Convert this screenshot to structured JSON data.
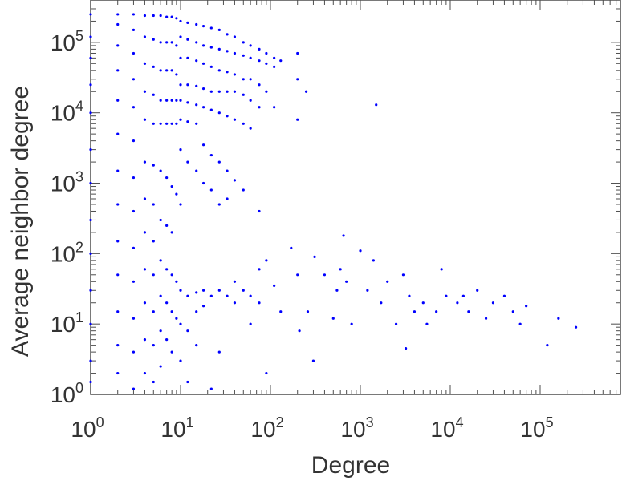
{
  "chart_data": {
    "type": "scatter",
    "title": "",
    "xlabel": "Degree",
    "ylabel": "Average neighbor degree",
    "xscale": "log",
    "yscale": "log",
    "xlim": [
      1,
      900000
    ],
    "ylim": [
      1,
      400000
    ],
    "x_ticks": [
      {
        "base": "10",
        "exp": "0",
        "value": 1
      },
      {
        "base": "10",
        "exp": "1",
        "value": 10
      },
      {
        "base": "10",
        "exp": "2",
        "value": 100
      },
      {
        "base": "10",
        "exp": "3",
        "value": 1000
      },
      {
        "base": "10",
        "exp": "4",
        "value": 10000
      },
      {
        "base": "10",
        "exp": "5",
        "value": 100000
      }
    ],
    "y_ticks": [
      {
        "base": "10",
        "exp": "0",
        "value": 1
      },
      {
        "base": "10",
        "exp": "1",
        "value": 10
      },
      {
        "base": "10",
        "exp": "2",
        "value": 100
      },
      {
        "base": "10",
        "exp": "3",
        "value": 1000
      },
      {
        "base": "10",
        "exp": "4",
        "value": 10000
      },
      {
        "base": "10",
        "exp": "5",
        "value": 100000
      }
    ],
    "grid": false,
    "legend": "none",
    "marker_color": "#0000ff",
    "series": [
      {
        "points": [
          [
            1,
            250000
          ],
          [
            1,
            120000
          ],
          [
            1,
            60000
          ],
          [
            1,
            25000
          ],
          [
            1,
            10000
          ],
          [
            1,
            3000
          ],
          [
            1,
            1000
          ],
          [
            1,
            300
          ],
          [
            1,
            100
          ],
          [
            1,
            30
          ],
          [
            1,
            10
          ],
          [
            1,
            3
          ],
          [
            1,
            1.5
          ],
          [
            2,
            250000
          ],
          [
            2,
            180000
          ],
          [
            2,
            90000
          ],
          [
            2,
            40000
          ],
          [
            2,
            15000
          ],
          [
            2,
            5000
          ],
          [
            2,
            1500
          ],
          [
            2,
            500
          ],
          [
            2,
            150
          ],
          [
            2,
            50
          ],
          [
            2,
            15
          ],
          [
            2,
            5
          ],
          [
            2,
            2
          ],
          [
            3,
            250000
          ],
          [
            3,
            150000
          ],
          [
            3,
            70000
          ],
          [
            3,
            30000
          ],
          [
            3,
            12000
          ],
          [
            3,
            4000
          ],
          [
            3,
            1200
          ],
          [
            3,
            400
          ],
          [
            3,
            120
          ],
          [
            3,
            40
          ],
          [
            3,
            12
          ],
          [
            3,
            4
          ],
          [
            3,
            1.2
          ],
          [
            4,
            240000
          ],
          [
            4,
            120000
          ],
          [
            4,
            50000
          ],
          [
            4,
            20000
          ],
          [
            4,
            8000
          ],
          [
            4,
            2000
          ],
          [
            4,
            600
          ],
          [
            4,
            200
          ],
          [
            4,
            60
          ],
          [
            4,
            20
          ],
          [
            4,
            6
          ],
          [
            4,
            2
          ],
          [
            5,
            240000
          ],
          [
            5,
            110000
          ],
          [
            5,
            45000
          ],
          [
            5,
            18000
          ],
          [
            5,
            7000
          ],
          [
            5,
            1800
          ],
          [
            5,
            500
          ],
          [
            5,
            150
          ],
          [
            5,
            50
          ],
          [
            5,
            15
          ],
          [
            5,
            5
          ],
          [
            5,
            1.5
          ],
          [
            6,
            240000
          ],
          [
            6,
            100000
          ],
          [
            6,
            40000
          ],
          [
            6,
            15000
          ],
          [
            6,
            7000
          ],
          [
            6,
            1500
          ],
          [
            6,
            300
          ],
          [
            6,
            80
          ],
          [
            6,
            25
          ],
          [
            6,
            8
          ],
          [
            6,
            2.5
          ],
          [
            7,
            230000
          ],
          [
            7,
            100000
          ],
          [
            7,
            40000
          ],
          [
            7,
            15000
          ],
          [
            7,
            7000
          ],
          [
            7,
            1200
          ],
          [
            7,
            250
          ],
          [
            7,
            60
          ],
          [
            7,
            20
          ],
          [
            7,
            6
          ],
          [
            8,
            230000
          ],
          [
            8,
            100000
          ],
          [
            8,
            40000
          ],
          [
            8,
            15000
          ],
          [
            8,
            7000
          ],
          [
            8,
            900
          ],
          [
            8,
            200
          ],
          [
            8,
            50
          ],
          [
            8,
            15
          ],
          [
            8,
            4
          ],
          [
            9,
            220000
          ],
          [
            9,
            90000
          ],
          [
            9,
            35000
          ],
          [
            9,
            15000
          ],
          [
            9,
            7000
          ],
          [
            9,
            700
          ],
          [
            9,
            40
          ],
          [
            9,
            12
          ],
          [
            10,
            200000
          ],
          [
            10,
            120000
          ],
          [
            10,
            60000
          ],
          [
            10,
            25000
          ],
          [
            10,
            15000
          ],
          [
            10,
            8000
          ],
          [
            10,
            3000
          ],
          [
            10,
            500
          ],
          [
            10,
            30
          ],
          [
            10,
            10
          ],
          [
            10,
            3
          ],
          [
            12,
            190000
          ],
          [
            12,
            110000
          ],
          [
            12,
            60000
          ],
          [
            12,
            25000
          ],
          [
            12,
            14000
          ],
          [
            12,
            7500
          ],
          [
            12,
            2000
          ],
          [
            12,
            25
          ],
          [
            12,
            8
          ],
          [
            12,
            1.5
          ],
          [
            15,
            180000
          ],
          [
            15,
            100000
          ],
          [
            15,
            55000
          ],
          [
            15,
            24000
          ],
          [
            15,
            13000
          ],
          [
            15,
            7000
          ],
          [
            15,
            1500
          ],
          [
            15,
            28
          ],
          [
            15,
            15
          ],
          [
            15,
            5
          ],
          [
            18,
            170000
          ],
          [
            18,
            90000
          ],
          [
            18,
            50000
          ],
          [
            18,
            22000
          ],
          [
            18,
            12000
          ],
          [
            18,
            3500
          ],
          [
            18,
            1000
          ],
          [
            18,
            30
          ],
          [
            18,
            18
          ],
          [
            22,
            160000
          ],
          [
            22,
            85000
          ],
          [
            22,
            45000
          ],
          [
            22,
            20000
          ],
          [
            22,
            11000
          ],
          [
            22,
            2500
          ],
          [
            22,
            800
          ],
          [
            22,
            25
          ],
          [
            22,
            1.2
          ],
          [
            27,
            150000
          ],
          [
            27,
            80000
          ],
          [
            27,
            40000
          ],
          [
            27,
            20000
          ],
          [
            27,
            10000
          ],
          [
            27,
            2000
          ],
          [
            27,
            500
          ],
          [
            27,
            30
          ],
          [
            27,
            4
          ],
          [
            33,
            130000
          ],
          [
            33,
            75000
          ],
          [
            33,
            38000
          ],
          [
            33,
            20000
          ],
          [
            33,
            9000
          ],
          [
            33,
            1500
          ],
          [
            33,
            600
          ],
          [
            33,
            25
          ],
          [
            40,
            120000
          ],
          [
            40,
            70000
          ],
          [
            40,
            35000
          ],
          [
            40,
            20000
          ],
          [
            40,
            8000
          ],
          [
            40,
            1100
          ],
          [
            40,
            40
          ],
          [
            40,
            20
          ],
          [
            50,
            100000
          ],
          [
            50,
            65000
          ],
          [
            50,
            30000
          ],
          [
            50,
            18000
          ],
          [
            50,
            7000
          ],
          [
            50,
            800
          ],
          [
            50,
            30
          ],
          [
            60,
            90000
          ],
          [
            60,
            60000
          ],
          [
            60,
            30000
          ],
          [
            60,
            15000
          ],
          [
            60,
            6000
          ],
          [
            60,
            25
          ],
          [
            60,
            10
          ],
          [
            75,
            80000
          ],
          [
            75,
            55000
          ],
          [
            75,
            25000
          ],
          [
            75,
            12000
          ],
          [
            75,
            400
          ],
          [
            75,
            60
          ],
          [
            75,
            20
          ],
          [
            90,
            70000
          ],
          [
            90,
            50000
          ],
          [
            90,
            20000
          ],
          [
            90,
            80
          ],
          [
            90,
            2
          ],
          [
            110,
            60000
          ],
          [
            110,
            45000
          ],
          [
            110,
            12000
          ],
          [
            110,
            35
          ],
          [
            130,
            55000
          ],
          [
            130,
            15
          ],
          [
            170,
            120
          ],
          [
            200,
            70000
          ],
          [
            200,
            30000
          ],
          [
            200,
            8000
          ],
          [
            200,
            50
          ],
          [
            210,
            8
          ],
          [
            250,
            20000
          ],
          [
            260,
            15
          ],
          [
            300,
            3
          ],
          [
            310,
            90
          ],
          [
            400,
            50
          ],
          [
            500,
            12
          ],
          [
            550,
            30
          ],
          [
            600,
            60
          ],
          [
            650,
            180
          ],
          [
            700,
            40
          ],
          [
            800,
            10
          ],
          [
            1000,
            110
          ],
          [
            1200,
            30
          ],
          [
            1400,
            80
          ],
          [
            1500,
            13000
          ],
          [
            1700,
            20
          ],
          [
            2000,
            40
          ],
          [
            2500,
            10
          ],
          [
            3000,
            50
          ],
          [
            3200,
            4.5
          ],
          [
            3500,
            25
          ],
          [
            4000,
            15
          ],
          [
            5000,
            20
          ],
          [
            5500,
            10
          ],
          [
            7000,
            15
          ],
          [
            8000,
            60
          ],
          [
            9000,
            25
          ],
          [
            12000,
            20
          ],
          [
            14000,
            25
          ],
          [
            16000,
            15
          ],
          [
            20000,
            30
          ],
          [
            25000,
            12
          ],
          [
            30000,
            20
          ],
          [
            40000,
            25
          ],
          [
            50000,
            15
          ],
          [
            60000,
            10
          ],
          [
            70000,
            18
          ],
          [
            120000,
            5
          ],
          [
            160000,
            12
          ],
          [
            250000,
            9
          ]
        ]
      }
    ]
  }
}
